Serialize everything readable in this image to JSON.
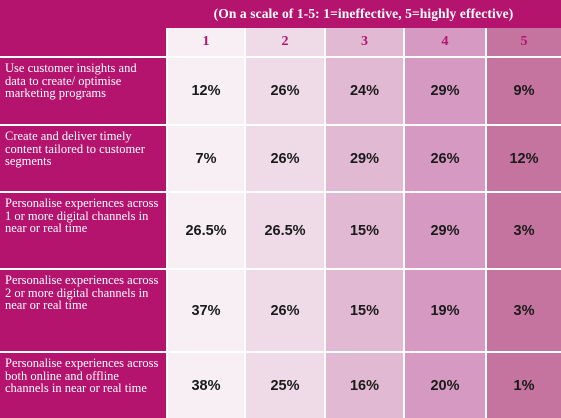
{
  "colors": {
    "background": "#b4136e",
    "level_1": "#f8eff4",
    "level_2": "#efdbe8",
    "level_3": "#e2b9d3",
    "level_4": "#d69ac2",
    "level_5": "#c5749f",
    "header_text": "#b4136e",
    "label_text": "#ffffff"
  },
  "chart_data": {
    "type": "table",
    "title": "(On a scale of 1-5: 1=ineffective, 5=highly effective)",
    "columns": [
      "1",
      "2",
      "3",
      "4",
      "5"
    ],
    "rows": [
      {
        "label": "Use customer insights and data to create/ optimise marketing programs",
        "values": [
          "12%",
          "26%",
          "24%",
          "29%",
          "9%"
        ]
      },
      {
        "label": "Create and deliver timely content tailored to customer segments",
        "values": [
          "7%",
          "26%",
          "29%",
          "26%",
          "12%"
        ]
      },
      {
        "label": "Personalise experiences across 1 or more digital channels in near or real time",
        "values": [
          "26.5%",
          "26.5%",
          "15%",
          "29%",
          "3%"
        ]
      },
      {
        "label": "Personalise experiences across 2 or more digital channels in near or real time",
        "values": [
          "37%",
          "26%",
          "15%",
          "19%",
          "3%"
        ]
      },
      {
        "label": "Personalise experiences across both online and offline channels in near or real time",
        "values": [
          "38%",
          "25%",
          "16%",
          "20%",
          "1%"
        ]
      }
    ]
  }
}
